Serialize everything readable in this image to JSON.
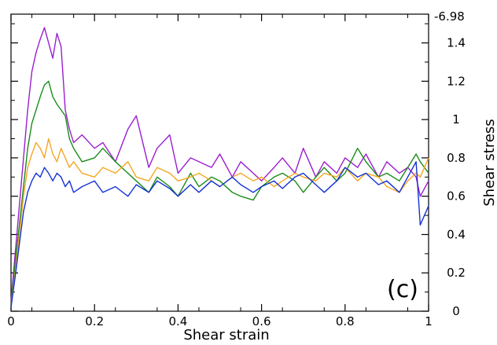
{
  "chart_data": {
    "type": "line",
    "xlabel": "Shear strain",
    "ylabel": "Shear stress",
    "xlim": [
      0,
      1
    ],
    "ylim": [
      0,
      1.55
    ],
    "x_ticks": [
      "0",
      "0.2",
      "0.4",
      "0.6",
      "0.8",
      "1"
    ],
    "y_ticks": [
      "0",
      "0.2",
      "0.4",
      "0.6",
      "0.8",
      "1",
      "1.2",
      "1.4"
    ],
    "y_top_label": "-6.98",
    "panel_label": "(c)",
    "grid": false,
    "series": [
      {
        "color": "#9a1fd0",
        "x": [
          0,
          0.01,
          0.02,
          0.03,
          0.04,
          0.05,
          0.06,
          0.07,
          0.08,
          0.09,
          0.1,
          0.11,
          0.12,
          0.13,
          0.14,
          0.15,
          0.17,
          0.2,
          0.22,
          0.25,
          0.28,
          0.3,
          0.33,
          0.35,
          0.38,
          0.4,
          0.43,
          0.45,
          0.48,
          0.5,
          0.53,
          0.55,
          0.58,
          0.6,
          0.63,
          0.65,
          0.68,
          0.7,
          0.73,
          0.75,
          0.78,
          0.8,
          0.83,
          0.85,
          0.88,
          0.9,
          0.93,
          0.95,
          0.97,
          0.98,
          1.0
        ],
        "y": [
          0.05,
          0.3,
          0.55,
          0.8,
          1.05,
          1.25,
          1.35,
          1.42,
          1.48,
          1.4,
          1.32,
          1.45,
          1.38,
          1.05,
          0.95,
          0.88,
          0.92,
          0.85,
          0.88,
          0.78,
          0.95,
          1.02,
          0.75,
          0.85,
          0.92,
          0.72,
          0.8,
          0.78,
          0.75,
          0.82,
          0.7,
          0.78,
          0.72,
          0.68,
          0.75,
          0.8,
          0.72,
          0.85,
          0.7,
          0.78,
          0.72,
          0.8,
          0.75,
          0.82,
          0.7,
          0.78,
          0.72,
          0.75,
          0.7,
          0.6,
          0.68
        ]
      },
      {
        "color": "#1a8c1a",
        "x": [
          0,
          0.01,
          0.02,
          0.03,
          0.04,
          0.05,
          0.06,
          0.07,
          0.08,
          0.09,
          0.1,
          0.11,
          0.12,
          0.13,
          0.14,
          0.15,
          0.17,
          0.2,
          0.22,
          0.25,
          0.28,
          0.3,
          0.33,
          0.35,
          0.38,
          0.4,
          0.43,
          0.45,
          0.48,
          0.5,
          0.53,
          0.55,
          0.58,
          0.6,
          0.63,
          0.65,
          0.68,
          0.7,
          0.73,
          0.75,
          0.78,
          0.8,
          0.83,
          0.85,
          0.88,
          0.9,
          0.93,
          0.95,
          0.97,
          0.98,
          1.0
        ],
        "y": [
          0.03,
          0.25,
          0.45,
          0.65,
          0.85,
          0.98,
          1.05,
          1.12,
          1.18,
          1.2,
          1.12,
          1.08,
          1.05,
          1.02,
          0.9,
          0.85,
          0.78,
          0.8,
          0.85,
          0.78,
          0.72,
          0.68,
          0.62,
          0.7,
          0.65,
          0.6,
          0.72,
          0.65,
          0.7,
          0.68,
          0.62,
          0.6,
          0.58,
          0.65,
          0.7,
          0.72,
          0.68,
          0.62,
          0.7,
          0.75,
          0.68,
          0.72,
          0.85,
          0.78,
          0.7,
          0.72,
          0.68,
          0.75,
          0.82,
          0.78,
          0.72
        ]
      },
      {
        "color": "#f5a623",
        "x": [
          0,
          0.01,
          0.02,
          0.03,
          0.04,
          0.05,
          0.06,
          0.07,
          0.08,
          0.09,
          0.1,
          0.11,
          0.12,
          0.13,
          0.14,
          0.15,
          0.17,
          0.2,
          0.22,
          0.25,
          0.28,
          0.3,
          0.33,
          0.35,
          0.38,
          0.4,
          0.43,
          0.45,
          0.48,
          0.5,
          0.53,
          0.55,
          0.58,
          0.6,
          0.63,
          0.65,
          0.68,
          0.7,
          0.73,
          0.75,
          0.78,
          0.8,
          0.83,
          0.85,
          0.88,
          0.9,
          0.93,
          0.95,
          0.97,
          0.98,
          1.0
        ],
        "y": [
          0.02,
          0.2,
          0.4,
          0.6,
          0.75,
          0.82,
          0.88,
          0.85,
          0.8,
          0.9,
          0.82,
          0.78,
          0.85,
          0.8,
          0.75,
          0.78,
          0.72,
          0.7,
          0.75,
          0.72,
          0.78,
          0.7,
          0.68,
          0.75,
          0.72,
          0.68,
          0.7,
          0.72,
          0.68,
          0.65,
          0.7,
          0.72,
          0.68,
          0.7,
          0.65,
          0.68,
          0.72,
          0.7,
          0.68,
          0.72,
          0.7,
          0.75,
          0.68,
          0.72,
          0.7,
          0.65,
          0.62,
          0.68,
          0.72,
          0.7,
          0.8
        ]
      },
      {
        "color": "#1432d6",
        "x": [
          0,
          0.01,
          0.02,
          0.03,
          0.04,
          0.05,
          0.06,
          0.07,
          0.08,
          0.09,
          0.1,
          0.11,
          0.12,
          0.13,
          0.14,
          0.15,
          0.17,
          0.2,
          0.22,
          0.25,
          0.28,
          0.3,
          0.33,
          0.35,
          0.38,
          0.4,
          0.43,
          0.45,
          0.48,
          0.5,
          0.53,
          0.55,
          0.58,
          0.6,
          0.63,
          0.65,
          0.68,
          0.7,
          0.73,
          0.75,
          0.78,
          0.8,
          0.83,
          0.85,
          0.88,
          0.9,
          0.93,
          0.95,
          0.97,
          0.98,
          1.0
        ],
        "y": [
          0.02,
          0.18,
          0.35,
          0.52,
          0.62,
          0.68,
          0.72,
          0.7,
          0.75,
          0.72,
          0.68,
          0.72,
          0.7,
          0.65,
          0.68,
          0.62,
          0.65,
          0.68,
          0.62,
          0.65,
          0.6,
          0.66,
          0.62,
          0.68,
          0.64,
          0.6,
          0.66,
          0.62,
          0.68,
          0.65,
          0.7,
          0.66,
          0.62,
          0.65,
          0.68,
          0.64,
          0.7,
          0.72,
          0.66,
          0.62,
          0.68,
          0.75,
          0.7,
          0.72,
          0.66,
          0.68,
          0.62,
          0.7,
          0.78,
          0.45,
          0.55
        ]
      }
    ]
  }
}
